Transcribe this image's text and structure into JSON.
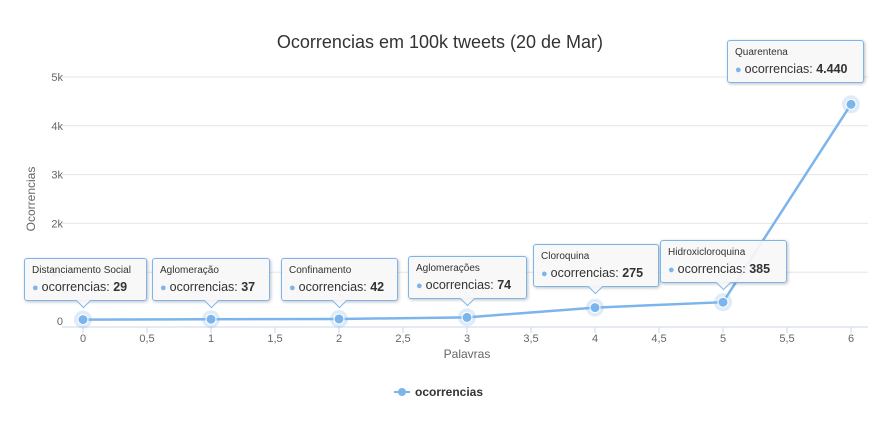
{
  "chart_data": {
    "type": "line",
    "title": "Ocorrencias em 100k tweets (20 de Mar)",
    "xlabel": "Palavras",
    "ylabel": "Ocorrencias",
    "xlim": [
      0,
      6
    ],
    "ylim": [
      0,
      5000
    ],
    "x_ticks": [
      "0",
      "0,5",
      "1",
      "1,5",
      "2",
      "2,5",
      "3",
      "3,5",
      "4",
      "4,5",
      "5",
      "5,5",
      "6"
    ],
    "y_ticks": [
      "0",
      "1k",
      "2k",
      "3k",
      "4k",
      "5k"
    ],
    "grid": "horizontal",
    "legend_position": "bottom-center",
    "series": [
      {
        "name": "ocorrencias",
        "color": "#7cb5ec",
        "points": [
          {
            "x": 0,
            "y": 29,
            "label": "Distanciamento Social",
            "value_text": "29"
          },
          {
            "x": 1,
            "y": 37,
            "label": "Aglomeração",
            "value_text": "37"
          },
          {
            "x": 2,
            "y": 42,
            "label": "Confinamento",
            "value_text": "42"
          },
          {
            "x": 3,
            "y": 74,
            "label": "Aglomerações",
            "value_text": "74"
          },
          {
            "x": 4,
            "y": 275,
            "label": "Cloroquina",
            "value_text": "275"
          },
          {
            "x": 5,
            "y": 385,
            "label": "Hidroxicloroquina",
            "value_text": "385"
          },
          {
            "x": 6,
            "y": 4440,
            "label": "Quarentena",
            "value_text": "4.440"
          }
        ]
      }
    ]
  },
  "legend": {
    "label": "ocorrencias"
  }
}
